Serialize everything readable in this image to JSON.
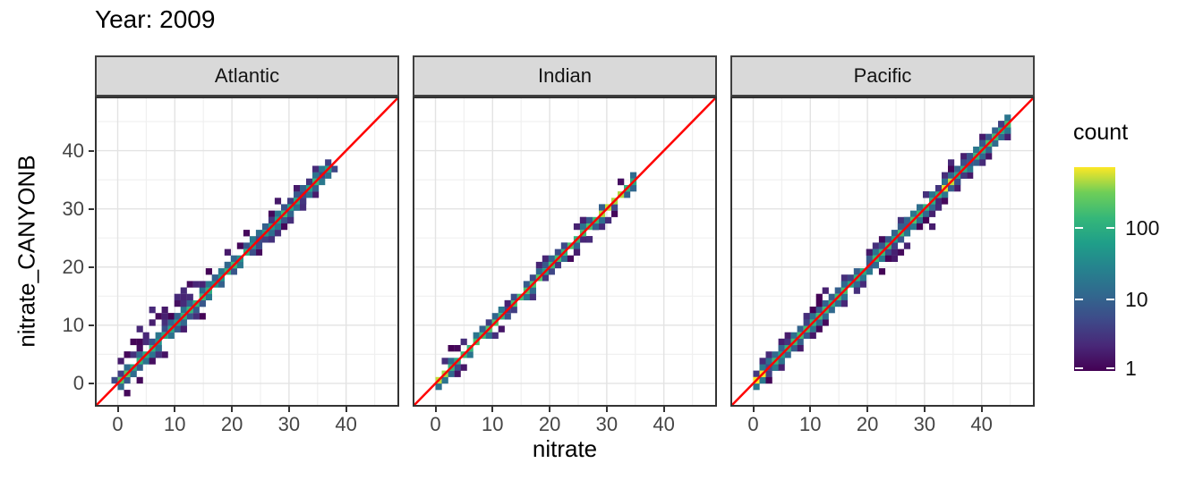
{
  "chart_data": {
    "type": "heatmap",
    "subtype": "bin2d-scatter-faceted",
    "title": "Year: 2009",
    "xlabel": "nitrate",
    "ylabel": "nitrate_CANYONB",
    "x_ticks": [
      0,
      10,
      20,
      30,
      40
    ],
    "y_ticks": [
      0,
      10,
      20,
      30,
      40
    ],
    "minor_ticks": [
      5,
      15,
      25,
      35,
      45
    ],
    "axis_range": [
      -4,
      49.3
    ],
    "grid": true,
    "bin_width": 1.1,
    "identity_line": {
      "equation": "y = x",
      "color": "#ff0000"
    },
    "legend": {
      "title": "count",
      "position": "right",
      "scale": "log10",
      "tick_labels": [
        "100",
        "10",
        "1"
      ],
      "tick_values": [
        100,
        10,
        1
      ],
      "max_count": 700,
      "viridis_stops": [
        "#440154",
        "#482878",
        "#3e4a89",
        "#31688e",
        "#26828e",
        "#1f9e89",
        "#35b779",
        "#6ece58",
        "#fde725"
      ]
    },
    "facets": [
      {
        "label": "Atlantic",
        "diagonal_max": 37.5,
        "center_count_range": [
          40,
          150
        ],
        "zones": [
          {
            "to": 15,
            "sd": 1.7,
            "up_bias": 0.72
          },
          {
            "to": 38,
            "sd": 0.7,
            "up_bias": 0.5
          }
        ],
        "hotspots": [
          [
            0,
            1.6,
            260
          ]
        ],
        "outliers": [
          [
            1,
            3.5
          ],
          [
            2,
            5
          ],
          [
            3,
            7
          ],
          [
            3.5,
            9
          ],
          [
            4,
            7.5
          ],
          [
            5,
            8.5
          ],
          [
            5.5,
            13
          ],
          [
            6,
            10
          ],
          [
            7,
            11.5
          ],
          [
            8,
            13
          ],
          [
            9,
            12
          ],
          [
            10,
            13.5
          ],
          [
            10.5,
            15
          ],
          [
            11,
            14.5
          ],
          [
            12,
            16
          ],
          [
            13,
            17
          ],
          [
            14,
            17.5
          ],
          [
            6.5,
            3.5
          ],
          [
            8,
            5
          ],
          [
            12,
            9.5
          ],
          [
            16,
            19
          ],
          [
            19,
            22
          ],
          [
            21,
            24
          ],
          [
            23,
            26
          ],
          [
            25,
            22.5
          ],
          [
            27,
            29.5
          ],
          [
            28,
            31
          ],
          [
            30,
            28
          ],
          [
            33,
            31
          ],
          [
            34.5,
            32.5
          ],
          [
            36,
            37.3
          ]
        ]
      },
      {
        "label": "Indian",
        "diagonal_max": 35,
        "center_count_range": [
          60,
          220
        ],
        "zones": [
          {
            "to": 35,
            "sd": 0.5,
            "up_bias": 0.5
          }
        ],
        "hotspots": [
          [
            0,
            1.2,
            520
          ],
          [
            28,
            33,
            420
          ]
        ],
        "outliers": [
          [
            3,
            5.5
          ],
          [
            4,
            6
          ],
          [
            24.5,
            23
          ],
          [
            26,
            24.5
          ],
          [
            27,
            25
          ],
          [
            28,
            26.5
          ],
          [
            29,
            27
          ],
          [
            27.5,
            24.5
          ],
          [
            26,
            28
          ],
          [
            31,
            29
          ],
          [
            33,
            34.5
          ]
        ]
      },
      {
        "label": "Pacific",
        "diagonal_max": 45,
        "center_count_range": [
          60,
          200
        ],
        "zones": [
          {
            "to": 45,
            "sd": 0.8,
            "up_bias": 0.5
          }
        ],
        "hotspots": [
          [
            0,
            1.2,
            650
          ],
          [
            32,
            34.5,
            520
          ],
          [
            20,
            21.5,
            160
          ]
        ],
        "outliers": [
          [
            3,
            1
          ],
          [
            5,
            7.5
          ],
          [
            9,
            11.5
          ],
          [
            10,
            12.5
          ],
          [
            12,
            15
          ],
          [
            12.5,
            15.5
          ],
          [
            13,
            10.5
          ],
          [
            16,
            13.5
          ],
          [
            20,
            23
          ],
          [
            22,
            19.5
          ],
          [
            25,
            21.5
          ],
          [
            26,
            22
          ],
          [
            27,
            24
          ],
          [
            31,
            27.5
          ],
          [
            30,
            33
          ],
          [
            35,
            37.5
          ],
          [
            38,
            35.5
          ],
          [
            40,
            42.5
          ],
          [
            43,
            44.5
          ]
        ]
      }
    ],
    "colors": {
      "strip_bg": "#d9d9d9",
      "strip_border": "#404040",
      "panel_border": "#333333",
      "grid_major": "#e3e3e3",
      "grid_minor": "#f0f0f0",
      "tick_label": "#454545",
      "panel_bg": "#ffffff"
    }
  }
}
